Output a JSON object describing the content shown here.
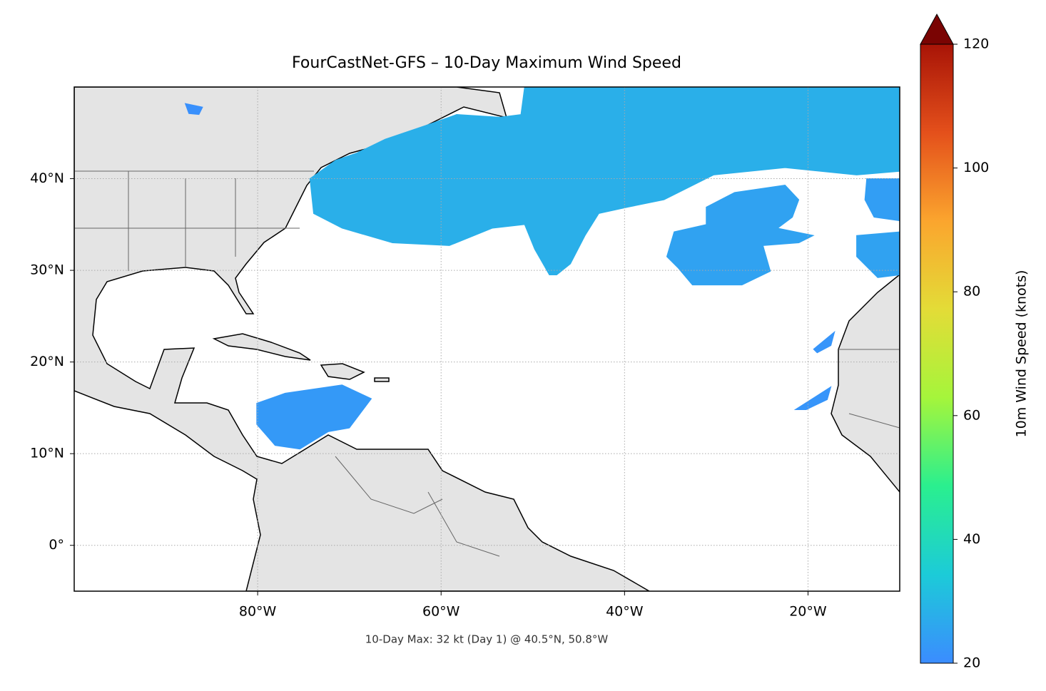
{
  "chart_data": {
    "type": "map",
    "title": "FourCastNet-GFS – 10-Day Maximum Wind Speed",
    "annotation": "10-Day Max: 32 kt (Day 1) @ 40.5°N, 50.8°W",
    "xlim": [
      -100,
      -10
    ],
    "ylim": [
      -5,
      50
    ],
    "xticks": [
      {
        "value": -80,
        "label": "80°W"
      },
      {
        "value": -60,
        "label": "60°W"
      },
      {
        "value": -40,
        "label": "40°W"
      },
      {
        "value": -20,
        "label": "20°W"
      }
    ],
    "yticks": [
      {
        "value": 0,
        "label": "0°"
      },
      {
        "value": 10,
        "label": "10°N"
      },
      {
        "value": 20,
        "label": "20°N"
      },
      {
        "value": 30,
        "label": "30°N"
      },
      {
        "value": 40,
        "label": "40°N"
      }
    ],
    "grid": true,
    "colorbar": {
      "label": "10m Wind Speed (knots)",
      "lim": [
        20,
        120
      ],
      "ticks": [
        20,
        40,
        60,
        80,
        100,
        120
      ],
      "extend": "max",
      "colormap": [
        "#3b8cff",
        "#1ccbd8",
        "#2aef8f",
        "#a5f53b",
        "#e3dc37",
        "#fba52e",
        "#e4501b",
        "#a81407",
        "#7a0403"
      ]
    },
    "regions": [
      {
        "value": 28,
        "lon": [
          -74.3,
          -71.5,
          -69.2,
          -66.1,
          -61.4,
          -58.3,
          -53.6,
          -51.3,
          -50.9,
          -10,
          -10,
          -14.7,
          -22.5,
          -30.3,
          -35.7,
          -39.6,
          -42.8,
          -44.3,
          -45.9,
          -47.4,
          -48.2,
          -49.8,
          -50.9,
          -54.4,
          -59.1,
          -65.3,
          -70.8,
          -73.9
        ],
        "lat": [
          40.0,
          42.0,
          42.8,
          44.3,
          45.9,
          47.0,
          46.7,
          47.0,
          50,
          50,
          40.8,
          40.4,
          41.2,
          40.4,
          37.7,
          36.9,
          36.2,
          33.8,
          30.7,
          29.5,
          29.5,
          32.3,
          35.0,
          34.6,
          32.7,
          33.0,
          34.6,
          36.2
        ]
      },
      {
        "value": 25,
        "lon": [
          -31.1,
          -28.0,
          -22.5,
          -21.0,
          -21.7,
          -23.3,
          -19.4,
          -21.0,
          -24.9,
          -24.1,
          -27.2,
          -32.6,
          -34.2,
          -35.4,
          -34.6,
          -31.1
        ],
        "lat": [
          36.9,
          38.5,
          39.3,
          37.7,
          35.8,
          34.6,
          33.8,
          33.0,
          32.7,
          29.9,
          28.4,
          28.4,
          30.3,
          31.5,
          34.2,
          35.0
        ]
      },
      {
        "value": 25,
        "lon": [
          -14.7,
          -10,
          -10,
          -12.4,
          -14.7
        ],
        "lat": [
          33.8,
          34.2,
          29.5,
          29.2,
          31.5
        ]
      },
      {
        "value": 24,
        "lon": [
          -13.6,
          -10,
          -10,
          -12.8,
          -13.8
        ],
        "lat": [
          40.0,
          40.0,
          35.4,
          35.8,
          37.7
        ]
      },
      {
        "value": 23,
        "lon": [
          -80.1,
          -77.0,
          -70.8,
          -67.6,
          -70.0,
          -72.3,
          -75.4,
          -78.1,
          -80.1
        ],
        "lat": [
          15.5,
          16.6,
          17.5,
          16.0,
          12.8,
          12.4,
          10.5,
          10.9,
          13.2
        ]
      },
      {
        "value": 22,
        "lon": [
          -21.4,
          -17.5,
          -17.9,
          -20.2
        ],
        "lat": [
          14.8,
          17.3,
          15.9,
          14.8
        ]
      },
      {
        "value": 22,
        "lon": [
          -19.4,
          -17.1,
          -17.5,
          -19.0
        ],
        "lat": [
          21.4,
          23.3,
          21.8,
          21.0
        ]
      },
      {
        "value": 21,
        "lon": [
          -87.9,
          -86.0,
          -86.4,
          -87.5
        ],
        "lat": [
          48.2,
          47.8,
          47.0,
          47.1
        ]
      }
    ]
  }
}
